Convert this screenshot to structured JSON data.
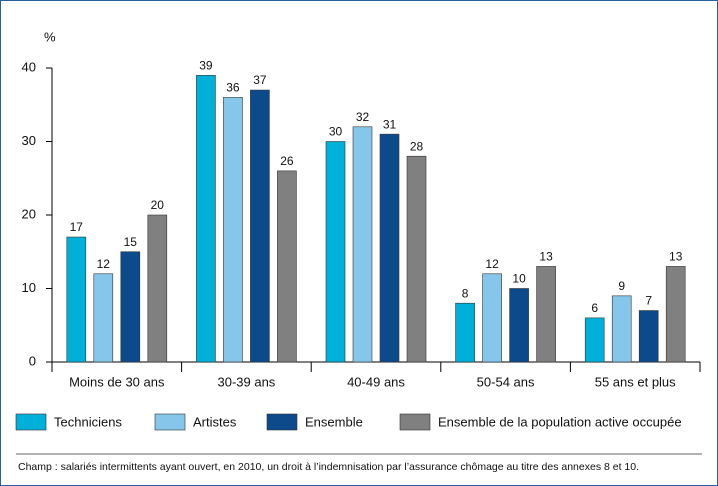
{
  "chart_data": {
    "type": "bar",
    "ylabel": "%",
    "categories": [
      "Moins de 30 ans",
      "30-39 ans",
      "40-49 ans",
      "50-54 ans",
      "55 ans et plus"
    ],
    "series": [
      {
        "name": "Techniciens",
        "color": "#00b0d8",
        "values": [
          17,
          39,
          30,
          8,
          6
        ]
      },
      {
        "name": "Artistes",
        "color": "#86c6ea",
        "values": [
          12,
          36,
          32,
          12,
          9
        ]
      },
      {
        "name": "Ensemble",
        "color": "#0d4a8c",
        "values": [
          15,
          37,
          31,
          10,
          7
        ]
      },
      {
        "name": "Ensemble de la population active occupée",
        "color": "#808080",
        "values": [
          20,
          26,
          28,
          13,
          13
        ]
      }
    ],
    "ylim": [
      0,
      40
    ],
    "yticks": [
      0,
      10,
      20,
      30,
      40
    ],
    "note": "Champ : salariés intermittents ayant ouvert, en 2010, un droit à l’indemnisation par l’assurance chômage au titre des annexes 8 et 10."
  }
}
